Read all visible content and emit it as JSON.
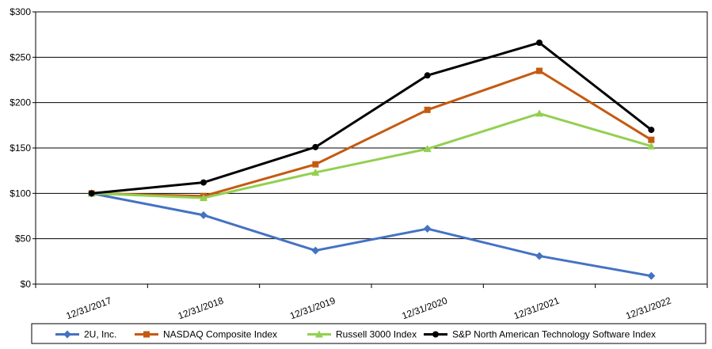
{
  "chart_data": {
    "type": "line",
    "title": "",
    "xlabel": "",
    "ylabel": "",
    "ylim": [
      0,
      300
    ],
    "y_tick_step": 50,
    "y_tick_labels": [
      "$0",
      "$50",
      "$100",
      "$150",
      "$200",
      "$250",
      "$300"
    ],
    "categories": [
      "12/31/2017",
      "12/31/2018",
      "12/31/2019",
      "12/31/2020",
      "12/31/2021",
      "12/31/2022"
    ],
    "grid": "horizontal",
    "legend_position": "bottom",
    "series": [
      {
        "name": "2U, Inc.",
        "color": "#4472C4",
        "marker": "diamond",
        "values": [
          100,
          76,
          37,
          61,
          31,
          9
        ]
      },
      {
        "name": "NASDAQ Composite Index",
        "color": "#C55A11",
        "marker": "square",
        "values": [
          100,
          97,
          132,
          192,
          235,
          159
        ]
      },
      {
        "name": "Russell 3000 Index",
        "color": "#92D050",
        "marker": "triangle",
        "values": [
          100,
          95,
          123,
          149,
          188,
          152
        ]
      },
      {
        "name": "S&P North American Technology Software Index",
        "color": "#000000",
        "marker": "circle",
        "values": [
          100,
          112,
          151,
          230,
          266,
          170
        ]
      }
    ]
  }
}
